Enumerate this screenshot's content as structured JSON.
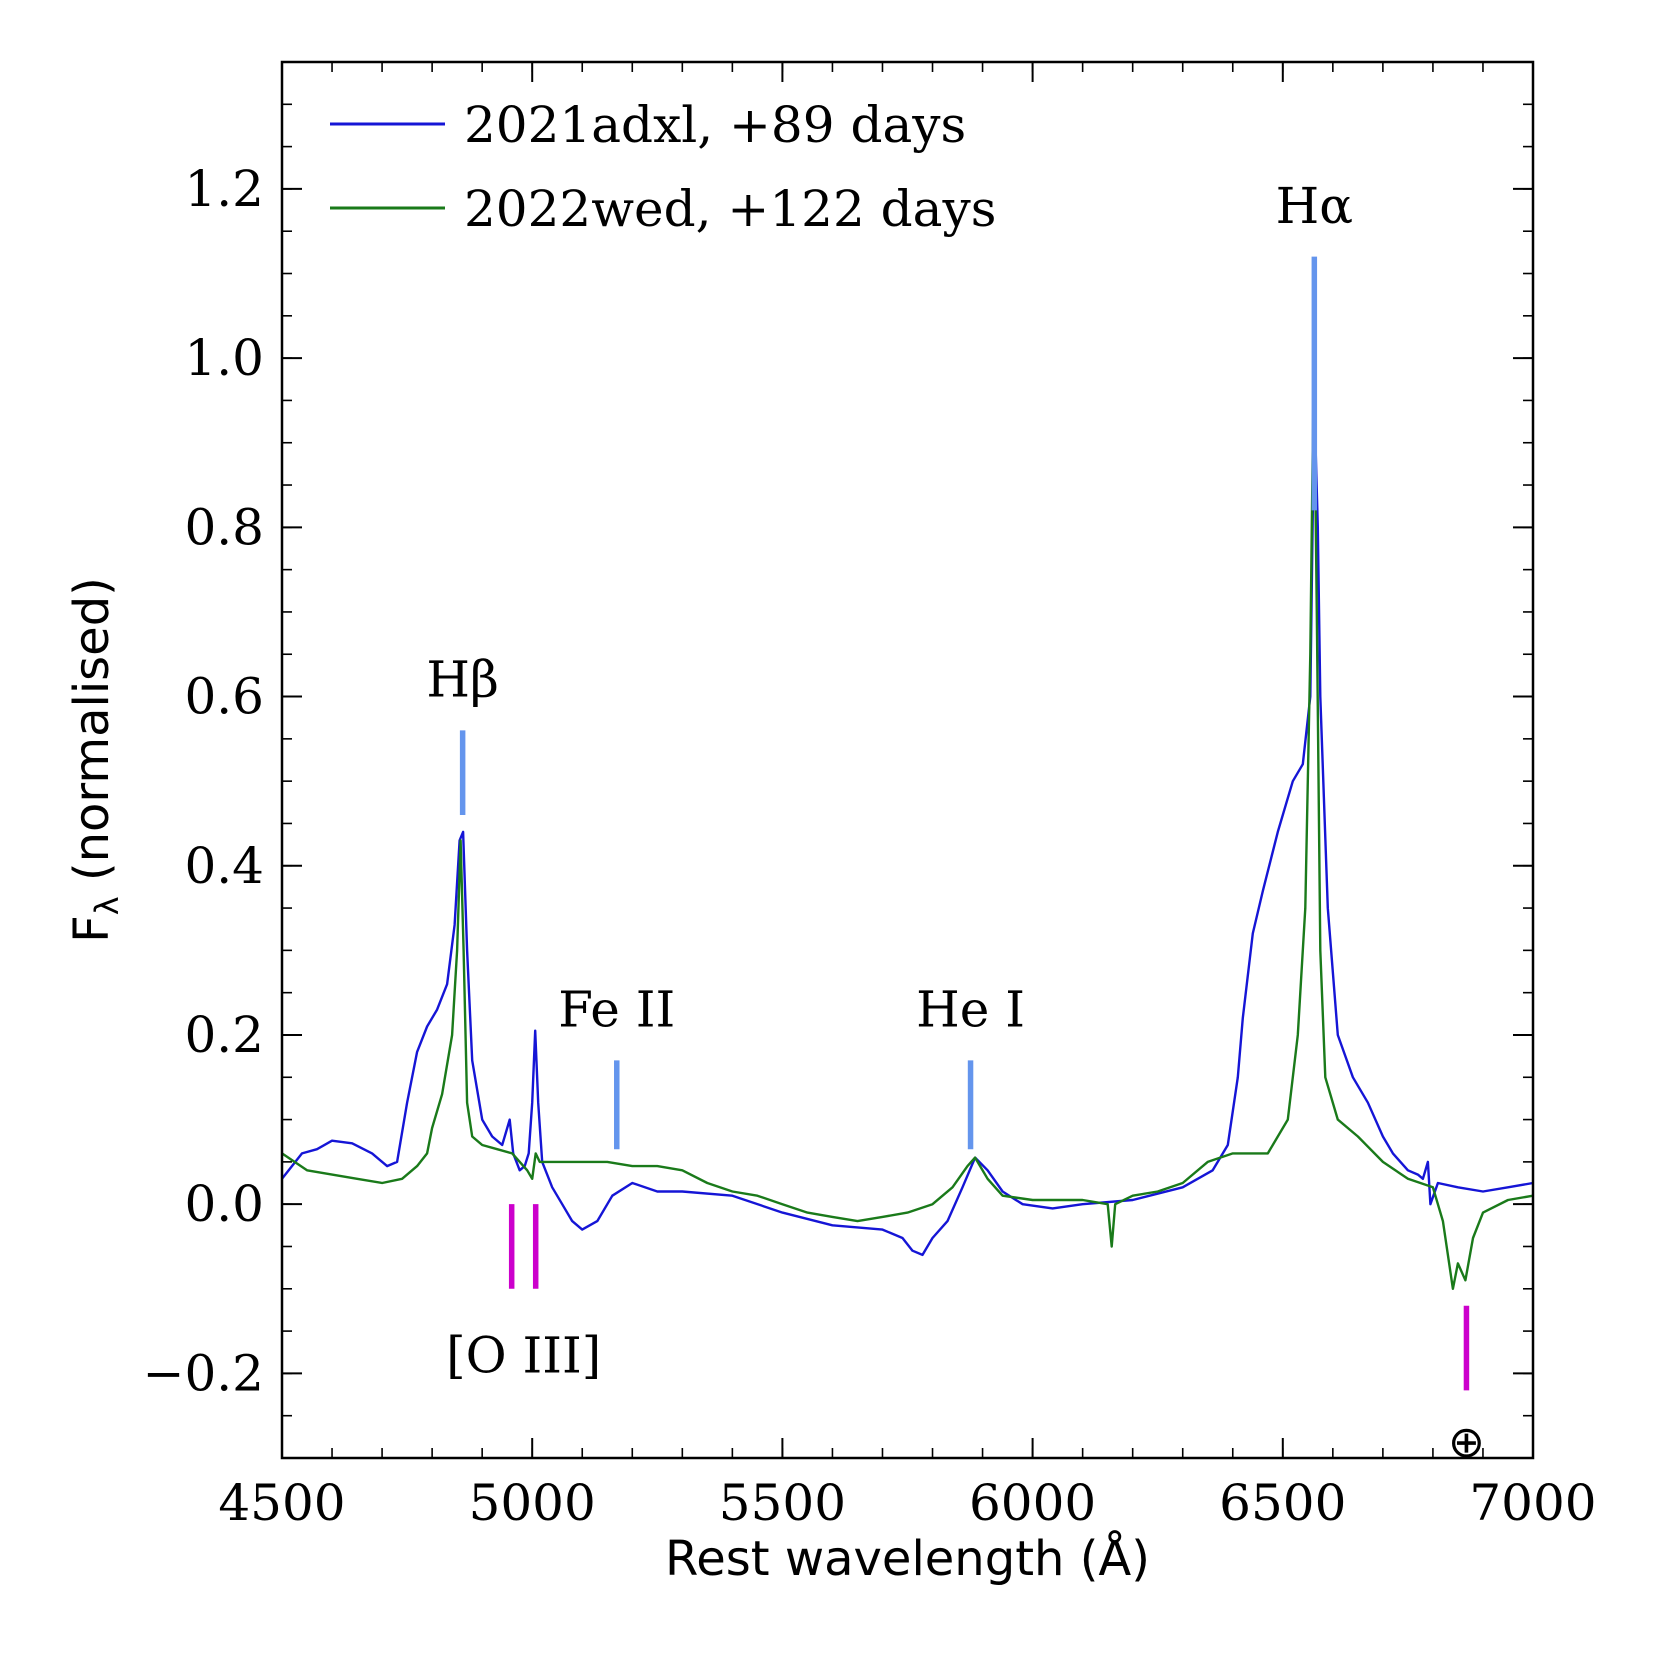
{
  "chart_data": {
    "type": "line",
    "xlabel": "Rest wavelength (Å)",
    "ylabel_main": "F",
    "ylabel_sub": "λ",
    "ylabel_rest": " (normalised)",
    "xlim": [
      4500,
      7000
    ],
    "ylim": [
      -0.3,
      1.35
    ],
    "x_ticks": [
      4500,
      5000,
      5500,
      6000,
      6500,
      7000
    ],
    "x_tick_labels": [
      "4500",
      "5000",
      "5500",
      "6000",
      "6500",
      "7000"
    ],
    "x_minor_step": 100,
    "y_ticks": [
      -0.2,
      0.0,
      0.2,
      0.4,
      0.6,
      0.8,
      1.0,
      1.2
    ],
    "y_tick_labels": [
      "−0.2",
      "0.0",
      "0.2",
      "0.4",
      "0.6",
      "0.8",
      "1.0",
      "1.2"
    ],
    "y_minor_step": 0.05,
    "legend_position": "top-left",
    "series": [
      {
        "name": "2021adxl, +89 days",
        "color": "#1515d6",
        "points": [
          [
            4500,
            0.03
          ],
          [
            4540,
            0.06
          ],
          [
            4570,
            0.065
          ],
          [
            4600,
            0.075
          ],
          [
            4640,
            0.072
          ],
          [
            4680,
            0.06
          ],
          [
            4710,
            0.045
          ],
          [
            4730,
            0.05
          ],
          [
            4750,
            0.12
          ],
          [
            4770,
            0.18
          ],
          [
            4790,
            0.21
          ],
          [
            4810,
            0.23
          ],
          [
            4830,
            0.26
          ],
          [
            4845,
            0.33
          ],
          [
            4855,
            0.43
          ],
          [
            4862,
            0.44
          ],
          [
            4870,
            0.3
          ],
          [
            4880,
            0.17
          ],
          [
            4900,
            0.1
          ],
          [
            4920,
            0.08
          ],
          [
            4940,
            0.07
          ],
          [
            4955,
            0.1
          ],
          [
            4962,
            0.06
          ],
          [
            4975,
            0.04
          ],
          [
            4985,
            0.045
          ],
          [
            4993,
            0.06
          ],
          [
            5000,
            0.12
          ],
          [
            5006,
            0.205
          ],
          [
            5012,
            0.12
          ],
          [
            5020,
            0.05
          ],
          [
            5040,
            0.02
          ],
          [
            5060,
            0.0
          ],
          [
            5080,
            -0.02
          ],
          [
            5100,
            -0.03
          ],
          [
            5130,
            -0.02
          ],
          [
            5160,
            0.01
          ],
          [
            5200,
            0.025
          ],
          [
            5250,
            0.015
          ],
          [
            5300,
            0.015
          ],
          [
            5400,
            0.01
          ],
          [
            5500,
            -0.01
          ],
          [
            5600,
            -0.025
          ],
          [
            5700,
            -0.03
          ],
          [
            5740,
            -0.04
          ],
          [
            5760,
            -0.055
          ],
          [
            5780,
            -0.06
          ],
          [
            5800,
            -0.04
          ],
          [
            5830,
            -0.02
          ],
          [
            5860,
            0.02
          ],
          [
            5885,
            0.055
          ],
          [
            5910,
            0.04
          ],
          [
            5940,
            0.015
          ],
          [
            5980,
            0.0
          ],
          [
            6040,
            -0.005
          ],
          [
            6100,
            0.0
          ],
          [
            6200,
            0.005
          ],
          [
            6300,
            0.02
          ],
          [
            6360,
            0.04
          ],
          [
            6390,
            0.07
          ],
          [
            6410,
            0.15
          ],
          [
            6420,
            0.22
          ],
          [
            6440,
            0.32
          ],
          [
            6460,
            0.37
          ],
          [
            6490,
            0.44
          ],
          [
            6520,
            0.5
          ],
          [
            6540,
            0.52
          ],
          [
            6555,
            0.6
          ],
          [
            6563,
            0.95
          ],
          [
            6570,
            0.8
          ],
          [
            6575,
            0.6
          ],
          [
            6590,
            0.35
          ],
          [
            6610,
            0.2
          ],
          [
            6640,
            0.15
          ],
          [
            6670,
            0.12
          ],
          [
            6700,
            0.08
          ],
          [
            6720,
            0.06
          ],
          [
            6750,
            0.04
          ],
          [
            6770,
            0.035
          ],
          [
            6780,
            0.03
          ],
          [
            6790,
            0.05
          ],
          [
            6795,
            0.0
          ],
          [
            6810,
            0.025
          ],
          [
            6850,
            0.02
          ],
          [
            6900,
            0.015
          ],
          [
            6950,
            0.02
          ],
          [
            7000,
            0.025
          ]
        ]
      },
      {
        "name": "2022wed, +122 days",
        "color": "#1a7a1a",
        "points": [
          [
            4500,
            0.06
          ],
          [
            4550,
            0.04
          ],
          [
            4600,
            0.035
          ],
          [
            4650,
            0.03
          ],
          [
            4700,
            0.025
          ],
          [
            4740,
            0.03
          ],
          [
            4770,
            0.045
          ],
          [
            4790,
            0.06
          ],
          [
            4800,
            0.09
          ],
          [
            4820,
            0.13
          ],
          [
            4840,
            0.2
          ],
          [
            4850,
            0.3
          ],
          [
            4857,
            0.43
          ],
          [
            4863,
            0.3
          ],
          [
            4870,
            0.12
          ],
          [
            4880,
            0.08
          ],
          [
            4900,
            0.07
          ],
          [
            4930,
            0.065
          ],
          [
            4960,
            0.06
          ],
          [
            4990,
            0.04
          ],
          [
            5000,
            0.03
          ],
          [
            5007,
            0.06
          ],
          [
            5015,
            0.05
          ],
          [
            5050,
            0.05
          ],
          [
            5100,
            0.05
          ],
          [
            5150,
            0.05
          ],
          [
            5200,
            0.045
          ],
          [
            5250,
            0.045
          ],
          [
            5300,
            0.04
          ],
          [
            5350,
            0.025
          ],
          [
            5400,
            0.015
          ],
          [
            5450,
            0.01
          ],
          [
            5500,
            0.0
          ],
          [
            5550,
            -0.01
          ],
          [
            5600,
            -0.015
          ],
          [
            5650,
            -0.02
          ],
          [
            5700,
            -0.015
          ],
          [
            5750,
            -0.01
          ],
          [
            5800,
            0.0
          ],
          [
            5840,
            0.02
          ],
          [
            5870,
            0.045
          ],
          [
            5885,
            0.055
          ],
          [
            5910,
            0.03
          ],
          [
            5940,
            0.01
          ],
          [
            6000,
            0.005
          ],
          [
            6100,
            0.005
          ],
          [
            6150,
            0.0
          ],
          [
            6158,
            -0.05
          ],
          [
            6165,
            0.0
          ],
          [
            6200,
            0.01
          ],
          [
            6250,
            0.015
          ],
          [
            6300,
            0.025
          ],
          [
            6350,
            0.05
          ],
          [
            6400,
            0.06
          ],
          [
            6440,
            0.06
          ],
          [
            6470,
            0.06
          ],
          [
            6490,
            0.08
          ],
          [
            6510,
            0.1
          ],
          [
            6530,
            0.2
          ],
          [
            6545,
            0.35
          ],
          [
            6555,
            0.65
          ],
          [
            6562,
            1.0
          ],
          [
            6568,
            0.7
          ],
          [
            6575,
            0.3
          ],
          [
            6585,
            0.15
          ],
          [
            6610,
            0.1
          ],
          [
            6650,
            0.08
          ],
          [
            6700,
            0.05
          ],
          [
            6750,
            0.03
          ],
          [
            6800,
            0.02
          ],
          [
            6820,
            -0.02
          ],
          [
            6835,
            -0.08
          ],
          [
            6840,
            -0.1
          ],
          [
            6850,
            -0.07
          ],
          [
            6865,
            -0.09
          ],
          [
            6880,
            -0.04
          ],
          [
            6900,
            -0.01
          ],
          [
            6950,
            0.005
          ],
          [
            7000,
            0.01
          ]
        ]
      }
    ],
    "line_markers": [
      {
        "label": "Hα",
        "x": 6563,
        "y0": 0.82,
        "y1": 1.12,
        "color": "#6495ed",
        "label_y": 1.16,
        "position": "above"
      },
      {
        "label": "Hβ",
        "x": 4861,
        "y0": 0.46,
        "y1": 0.56,
        "color": "#6495ed",
        "label_y": 0.6,
        "position": "above"
      },
      {
        "label": "Fe II",
        "x": 5169,
        "y0": 0.065,
        "y1": 0.17,
        "color": "#6495ed",
        "label_y": 0.21,
        "position": "above"
      },
      {
        "label": "He I",
        "x": 5876,
        "y0": 0.065,
        "y1": 0.17,
        "color": "#6495ed",
        "label_y": 0.21,
        "position": "above"
      },
      {
        "label": "[O III]",
        "x": [
          4959,
          5007
        ],
        "y0": -0.1,
        "y1": -0.0,
        "color": "#cc00cc",
        "label_y": -0.18,
        "position": "below"
      },
      {
        "label": "⊕",
        "x": 6867,
        "y0": -0.22,
        "y1": -0.12,
        "color": "#cc00cc",
        "label_y": -0.28,
        "position": "below"
      }
    ]
  }
}
